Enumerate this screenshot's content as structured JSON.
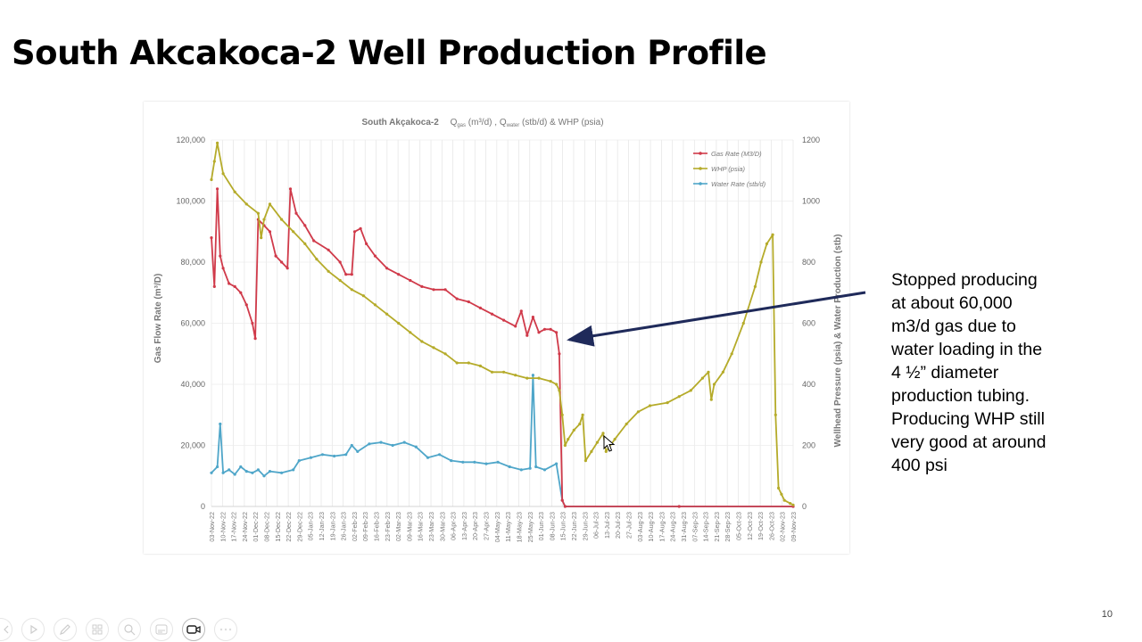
{
  "slide": {
    "title": "South Akcakoca-2 Well Production Profile",
    "annotation_lines": [
      "Stopped producing",
      "at about 60,000",
      "m3/d gas due to",
      "water loading in the",
      "4 ½” diameter",
      "production tubing.",
      "Producing WHP still",
      "very good at around",
      "400 psi"
    ],
    "page_number": "10"
  },
  "toolbar": {
    "icons": [
      "prev-icon",
      "play-icon",
      "pen-icon",
      "grid-icon",
      "zoom-icon",
      "subtitles-icon",
      "camera-icon",
      "more-icon"
    ]
  },
  "colors": {
    "gas": "#d03a4a",
    "whp": "#b5ab2a",
    "water": "#4fa6c9",
    "arrow": "#1f2a5a"
  },
  "chart_data": {
    "type": "line",
    "title_main": "South Akçakoca-2",
    "title_q": "Q",
    "title_gas_sub": "gas",
    "title_unit1": " (m³/d) , ",
    "title_q2": "Q",
    "title_water_sub": "water",
    "title_unit2": " (stb/d) & WHP (psia)",
    "ylabel_left": "Gas Flow Rate  (m³/D)",
    "ylabel_right": "Wellhead Pressure  (psia)   &  Water Production  (stb)",
    "y_left": {
      "min": 0,
      "max": 120000,
      "ticks": [
        "0",
        "20,000",
        "40,000",
        "60,000",
        "80,000",
        "100,000",
        "120,000"
      ]
    },
    "y_right": {
      "min": 0,
      "max": 1200,
      "ticks": [
        "0",
        "200",
        "400",
        "600",
        "800",
        "1000",
        "1200"
      ]
    },
    "x_labels": [
      "03-Nov-22",
      "10-Nov-22",
      "17-Nov-22",
      "24-Nov-22",
      "01-Dec-22",
      "08-Dec-22",
      "15-Dec-22",
      "22-Dec-22",
      "29-Dec-22",
      "05-Jan-23",
      "12-Jan-23",
      "19-Jan-23",
      "26-Jan-23",
      "02-Feb-23",
      "09-Feb-23",
      "16-Feb-23",
      "23-Feb-23",
      "02-Mar-23",
      "09-Mar-23",
      "16-Mar-23",
      "23-Mar-23",
      "30-Mar-23",
      "06-Apr-23",
      "13-Apr-23",
      "20-Apr-23",
      "27-Apr-23",
      "04-May-23",
      "11-May-23",
      "18-May-23",
      "25-May-23",
      "01-Jun-23",
      "08-Jun-23",
      "15-Jun-23",
      "22-Jun-23",
      "29-Jun-23",
      "06-Jul-23",
      "13-Jul-23",
      "20-Jul-23",
      "27-Jul-23",
      "03-Aug-23",
      "10-Aug-23",
      "17-Aug-23",
      "24-Aug-23",
      "31-Aug-23",
      "07-Sep-23",
      "14-Sep-23",
      "21-Sep-23",
      "28-Sep-23",
      "05-Oct-23",
      "12-Oct-23",
      "19-Oct-23",
      "26-Oct-23",
      "02-Nov-23",
      "09-Nov-23"
    ],
    "legend": [
      "Gas Rate (M3/D)",
      "WHP (psia)",
      "Water Rate (stb/d)"
    ],
    "legend_position": "top-right",
    "grid": true,
    "series": [
      {
        "name": "Gas Rate (M3/D)",
        "axis": "left",
        "points": [
          [
            0,
            88000
          ],
          [
            1,
            72000
          ],
          [
            2,
            104000
          ],
          [
            3,
            82000
          ],
          [
            4,
            78000
          ],
          [
            6,
            73000
          ],
          [
            8,
            72000
          ],
          [
            10,
            70000
          ],
          [
            12,
            66000
          ],
          [
            14,
            60000
          ],
          [
            15,
            55000
          ],
          [
            16,
            94000
          ],
          [
            18,
            92000
          ],
          [
            20,
            90000
          ],
          [
            22,
            82000
          ],
          [
            24,
            80000
          ],
          [
            26,
            78000
          ],
          [
            27,
            104000
          ],
          [
            29,
            96000
          ],
          [
            32,
            92000
          ],
          [
            35,
            87000
          ],
          [
            40,
            84000
          ],
          [
            44,
            80000
          ],
          [
            46,
            76000
          ],
          [
            48,
            76000
          ],
          [
            49,
            90000
          ],
          [
            51,
            91000
          ],
          [
            53,
            86000
          ],
          [
            56,
            82000
          ],
          [
            60,
            78000
          ],
          [
            64,
            76000
          ],
          [
            68,
            74000
          ],
          [
            72,
            72000
          ],
          [
            76,
            71000
          ],
          [
            80,
            71000
          ],
          [
            84,
            68000
          ],
          [
            88,
            67000
          ],
          [
            92,
            65000
          ],
          [
            96,
            63000
          ],
          [
            100,
            61000
          ],
          [
            104,
            59000
          ],
          [
            106,
            64000
          ],
          [
            108,
            56000
          ],
          [
            110,
            62000
          ],
          [
            112,
            57000
          ],
          [
            114,
            58000
          ],
          [
            116,
            58000
          ],
          [
            118,
            57000
          ],
          [
            119,
            50000
          ],
          [
            120,
            2000
          ],
          [
            121,
            0
          ],
          [
            160,
            0
          ],
          [
            199,
            0
          ]
        ]
      },
      {
        "name": "WHP (psia)",
        "axis": "right",
        "points": [
          [
            0,
            1070
          ],
          [
            1,
            1130
          ],
          [
            2,
            1190
          ],
          [
            4,
            1090
          ],
          [
            8,
            1030
          ],
          [
            12,
            990
          ],
          [
            16,
            960
          ],
          [
            17,
            880
          ],
          [
            18,
            940
          ],
          [
            20,
            990
          ],
          [
            24,
            940
          ],
          [
            28,
            900
          ],
          [
            32,
            860
          ],
          [
            36,
            810
          ],
          [
            40,
            770
          ],
          [
            44,
            740
          ],
          [
            48,
            710
          ],
          [
            52,
            690
          ],
          [
            56,
            660
          ],
          [
            60,
            630
          ],
          [
            64,
            600
          ],
          [
            68,
            570
          ],
          [
            72,
            540
          ],
          [
            76,
            520
          ],
          [
            80,
            500
          ],
          [
            84,
            470
          ],
          [
            88,
            470
          ],
          [
            92,
            460
          ],
          [
            96,
            440
          ],
          [
            100,
            440
          ],
          [
            104,
            430
          ],
          [
            108,
            420
          ],
          [
            112,
            420
          ],
          [
            116,
            410
          ],
          [
            118,
            400
          ],
          [
            119,
            380
          ],
          [
            120,
            300
          ],
          [
            121,
            200
          ],
          [
            122,
            220
          ],
          [
            124,
            250
          ],
          [
            126,
            270
          ],
          [
            127,
            300
          ],
          [
            128,
            150
          ],
          [
            130,
            180
          ],
          [
            132,
            210
          ],
          [
            134,
            240
          ],
          [
            135,
            180
          ],
          [
            138,
            220
          ],
          [
            142,
            270
          ],
          [
            146,
            310
          ],
          [
            150,
            330
          ],
          [
            156,
            340
          ],
          [
            160,
            360
          ],
          [
            164,
            380
          ],
          [
            168,
            420
          ],
          [
            170,
            440
          ],
          [
            171,
            350
          ],
          [
            172,
            400
          ],
          [
            175,
            440
          ],
          [
            178,
            500
          ],
          [
            182,
            600
          ],
          [
            186,
            720
          ],
          [
            188,
            800
          ],
          [
            190,
            860
          ],
          [
            192,
            890
          ],
          [
            193,
            300
          ],
          [
            194,
            60
          ],
          [
            195,
            40
          ],
          [
            196,
            20
          ],
          [
            198,
            10
          ],
          [
            199,
            5
          ]
        ]
      },
      {
        "name": "Water Rate (stb/d)",
        "axis": "right",
        "points": [
          [
            0,
            110
          ],
          [
            2,
            130
          ],
          [
            3,
            270
          ],
          [
            4,
            110
          ],
          [
            6,
            120
          ],
          [
            8,
            105
          ],
          [
            10,
            130
          ],
          [
            12,
            115
          ],
          [
            14,
            110
          ],
          [
            16,
            120
          ],
          [
            18,
            100
          ],
          [
            20,
            115
          ],
          [
            24,
            110
          ],
          [
            28,
            120
          ],
          [
            30,
            150
          ],
          [
            34,
            160
          ],
          [
            38,
            170
          ],
          [
            42,
            165
          ],
          [
            46,
            170
          ],
          [
            48,
            200
          ],
          [
            50,
            180
          ],
          [
            54,
            205
          ],
          [
            58,
            210
          ],
          [
            62,
            200
          ],
          [
            66,
            210
          ],
          [
            70,
            195
          ],
          [
            74,
            160
          ],
          [
            78,
            170
          ],
          [
            82,
            150
          ],
          [
            86,
            145
          ],
          [
            90,
            145
          ],
          [
            94,
            140
          ],
          [
            98,
            145
          ],
          [
            102,
            130
          ],
          [
            106,
            120
          ],
          [
            109,
            125
          ],
          [
            110,
            430
          ],
          [
            111,
            130
          ],
          [
            114,
            120
          ],
          [
            118,
            140
          ],
          [
            120,
            20
          ],
          [
            121,
            0
          ],
          [
            160,
            0
          ],
          [
            199,
            0
          ]
        ]
      }
    ]
  }
}
